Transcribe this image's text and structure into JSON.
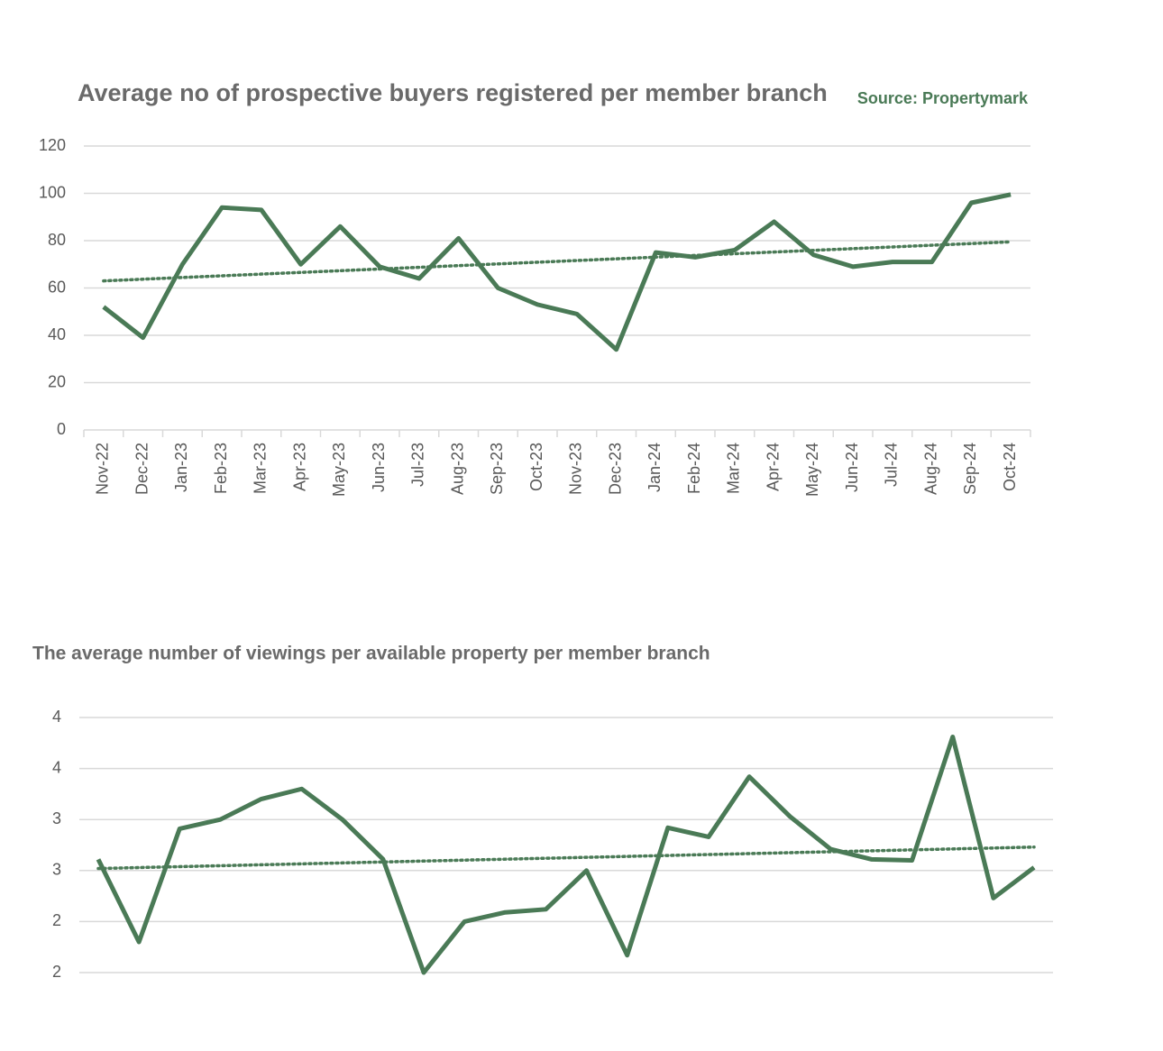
{
  "chart_data": [
    {
      "type": "line",
      "title": "Average no of prospective buyers registered per member branch",
      "source": "Source: Propertymark",
      "categories": [
        "Nov-22",
        "Dec-22",
        "Jan-23",
        "Feb-23",
        "Mar-23",
        "Apr-23",
        "May-23",
        "Jun-23",
        "Jul-23",
        "Aug-23",
        "Sep-23",
        "Oct-23",
        "Nov-23",
        "Dec-23",
        "Jan-24",
        "Feb-24",
        "Mar-24",
        "Apr-24",
        "May-24",
        "Jun-24",
        "Jul-24",
        "Aug-24",
        "Sep-24",
        "Oct-24"
      ],
      "values": [
        52,
        39,
        70,
        94,
        93,
        70,
        86,
        69,
        64,
        81,
        60,
        53,
        49,
        34,
        75,
        73,
        76,
        88,
        74,
        69,
        71,
        71,
        96,
        99.5
      ],
      "trend": [
        63,
        79.5
      ],
      "color": "#4a7a56",
      "ylim": [
        0,
        120
      ],
      "yticks": [
        0,
        20,
        40,
        60,
        80,
        100,
        120
      ],
      "grid": true
    },
    {
      "type": "line",
      "title": "The average number of viewings per available property per member branch",
      "values": [
        2.61,
        1.8,
        2.91,
        3.0,
        3.2,
        3.3,
        3.0,
        2.61,
        1.5,
        2.0,
        2.09,
        2.12,
        2.5,
        1.67,
        2.92,
        2.83,
        3.42,
        3.03,
        2.71,
        2.61,
        2.6,
        3.81,
        2.23,
        2.53
      ],
      "trend": [
        2.52,
        2.73
      ],
      "color": "#4a7a56",
      "ylim": [
        1.5,
        4
      ],
      "yticks": [
        {
          "value": 1.5,
          "label": "2"
        },
        {
          "value": 2,
          "label": "2"
        },
        {
          "value": 2.5,
          "label": "3"
        },
        {
          "value": 3,
          "label": "3"
        },
        {
          "value": 3.5,
          "label": "4"
        },
        {
          "value": 4,
          "label": "4"
        }
      ],
      "grid": true
    }
  ]
}
